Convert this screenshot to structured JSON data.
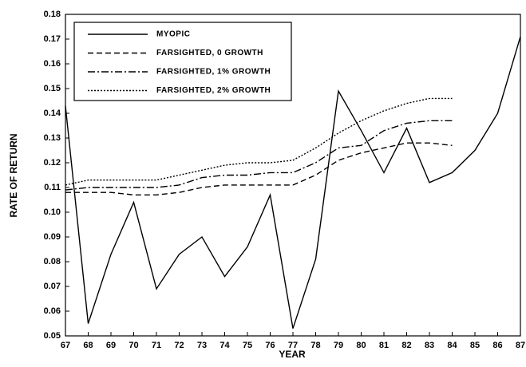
{
  "chart_data": {
    "type": "line",
    "xlabel": "YEAR",
    "ylabel": "RATE OF RETURN",
    "x": [
      67,
      68,
      69,
      70,
      71,
      72,
      73,
      74,
      75,
      76,
      77,
      78,
      79,
      80,
      81,
      82,
      83,
      84,
      85,
      86,
      87
    ],
    "series": [
      {
        "name": "MYOPIC",
        "color": "#000000",
        "style": "solid",
        "values": [
          0.143,
          0.055,
          0.083,
          0.104,
          0.069,
          0.083,
          0.09,
          0.074,
          0.086,
          0.107,
          0.053,
          0.081,
          0.149,
          0.133,
          0.116,
          0.134,
          0.112,
          0.116,
          0.125,
          0.14,
          0.171
        ]
      },
      {
        "name": "FARSIGHTED, 0 GROWTH",
        "color": "#000000",
        "style": "dashed",
        "values": [
          0.108,
          0.108,
          0.108,
          0.107,
          0.107,
          0.108,
          0.11,
          0.111,
          0.111,
          0.111,
          0.111,
          0.115,
          0.121,
          0.124,
          0.126,
          0.128,
          0.128,
          0.127,
          null,
          null,
          null
        ]
      },
      {
        "name": "FARSIGHTED, 1% GROWTH",
        "color": "#000000",
        "style": "dashdot",
        "values": [
          0.109,
          0.11,
          0.11,
          0.11,
          0.11,
          0.111,
          0.114,
          0.115,
          0.115,
          0.116,
          0.116,
          0.12,
          0.126,
          0.127,
          0.133,
          0.136,
          0.137,
          0.137,
          null,
          null,
          null
        ]
      },
      {
        "name": "FARSIGHTED, 2% GROWTH",
        "color": "#000000",
        "style": "dotted",
        "values": [
          0.111,
          0.113,
          0.113,
          0.113,
          0.113,
          0.115,
          0.117,
          0.119,
          0.12,
          0.12,
          0.121,
          0.126,
          0.132,
          0.137,
          0.141,
          0.144,
          0.146,
          0.146,
          null,
          null,
          null
        ]
      }
    ],
    "xlim": [
      67,
      87
    ],
    "xticks": [
      67,
      68,
      69,
      70,
      71,
      72,
      73,
      74,
      75,
      76,
      77,
      78,
      79,
      80,
      81,
      82,
      83,
      84,
      85,
      86,
      87
    ],
    "ylim": [
      0.05,
      0.18
    ],
    "yticks": [
      0.05,
      0.06,
      0.07,
      0.08,
      0.09,
      {
        "value": 0.1,
        "label": "0.10"
      },
      0.11,
      0.12,
      0.13,
      0.14,
      0.15,
      0.16,
      0.17,
      0.18
    ],
    "legend": "upper left"
  }
}
